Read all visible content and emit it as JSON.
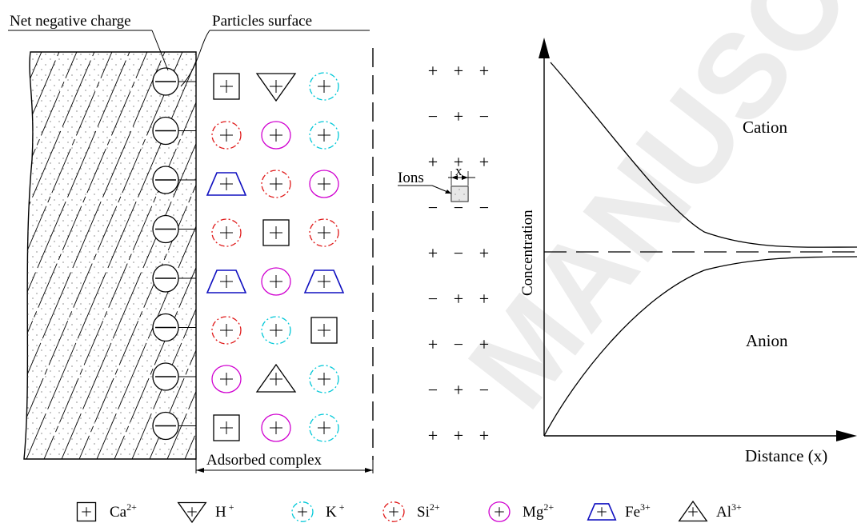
{
  "labels": {
    "net_negative_charge": "Net negative charge",
    "particles_surface": "Particles surface",
    "adsorbed_complex": "Adsorbed complex",
    "ions": "Ions",
    "x_marker": "x",
    "cation": "Cation",
    "anion": "Anion",
    "concentration": "Concentration",
    "distance": "Distance (x)"
  },
  "watermark": "MANUSCRIPT",
  "ion_types": {
    "Ca": {
      "shape": "square",
      "color": "#000000"
    },
    "H": {
      "shape": "triangle-down",
      "color": "#000000"
    },
    "K": {
      "shape": "circle",
      "color": "#00c8d8",
      "dash": true
    },
    "Si": {
      "shape": "circle",
      "color": "#e01818",
      "dash": true
    },
    "Mg": {
      "shape": "circle",
      "color": "#d000d0",
      "dash": false
    },
    "Fe": {
      "shape": "trapezoid",
      "color": "#1010c0"
    },
    "Al": {
      "shape": "triangle-up",
      "color": "#000000"
    }
  },
  "adsorbed_grid": [
    [
      "Ca",
      "H",
      "K"
    ],
    [
      "Si",
      "Mg",
      "K"
    ],
    [
      "Fe",
      "Si",
      "Mg"
    ],
    [
      "Si",
      "Ca",
      "Si"
    ],
    [
      "Fe",
      "Mg",
      "Fe"
    ],
    [
      "Si",
      "K",
      "Ca"
    ],
    [
      "Mg",
      "Al",
      "K"
    ],
    [
      "Ca",
      "Mg",
      "K"
    ]
  ],
  "diffuse_layer": [
    [
      "+",
      "+",
      "+"
    ],
    [
      "−",
      "+",
      "−"
    ],
    [
      "+",
      "+",
      "+"
    ],
    [
      "−",
      "−",
      "−"
    ],
    [
      "+",
      "−",
      "+"
    ],
    [
      "−",
      "+",
      "+"
    ],
    [
      "+",
      "−",
      "+"
    ],
    [
      "−",
      "+",
      "−"
    ],
    [
      "+",
      "+",
      "+"
    ]
  ],
  "legend": [
    {
      "ion": "Ca",
      "base": "Ca",
      "sup": "2+"
    },
    {
      "ion": "H",
      "base": "H",
      "sup": " +"
    },
    {
      "ion": "K",
      "base": "K",
      "sup": " +"
    },
    {
      "ion": "Si",
      "base": "Si",
      "sup": "2+"
    },
    {
      "ion": "Mg",
      "base": "Mg",
      "sup": "2+"
    },
    {
      "ion": "Fe",
      "base": "Fe",
      "sup": "3+"
    },
    {
      "ion": "Al",
      "base": "Al",
      "sup": "3+"
    }
  ]
}
